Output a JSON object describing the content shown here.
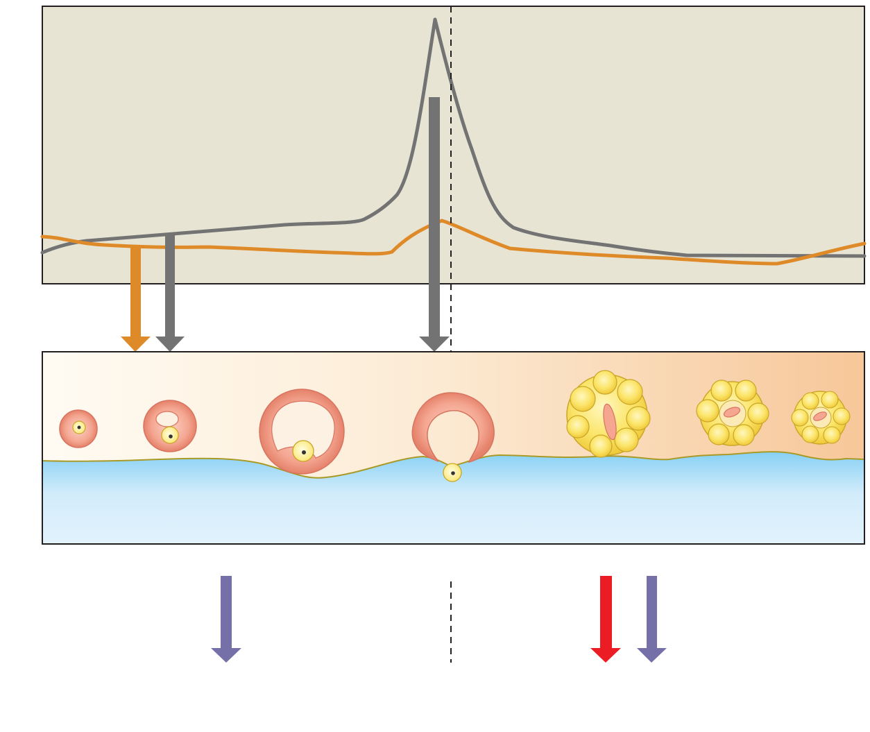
{
  "colors": {
    "hormone_panel_bg": "#e8e4d4",
    "gray_hormone": "#737373",
    "orange_hormone": "#de8a28",
    "follicle_pink": "#f2a08d",
    "follicle_pink_dark": "#d8735f",
    "oocyte_yellow": "#fff4a6",
    "corpus_luteum_yellow": "#f8dd58",
    "corpus_luteum_edge": "#c9a628",
    "ovary_gradient_left": "#fffbf3",
    "ovary_gradient_right": "#f7c799",
    "stroma_blue_top": "#86d0f3",
    "stroma_blue_bottom": "#e2f3fd",
    "surface_line": "#a99a26",
    "arrow_purple": "#7670a8",
    "arrow_red": "#ec1c24",
    "frame": "#231f20"
  },
  "icons": {
    "orange_down_arrow": "arrow-down-orange",
    "gray_down_arrow": "arrow-down-gray",
    "purple_down_arrow": "arrow-down-purple",
    "red_down_arrow": "arrow-down-red"
  }
}
